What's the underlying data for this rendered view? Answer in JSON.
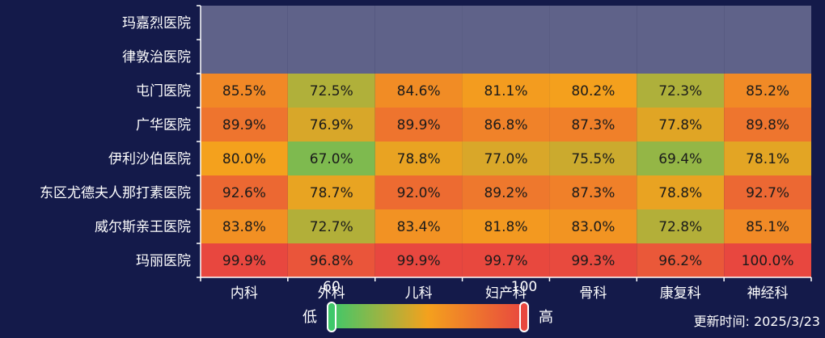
{
  "chart_data": {
    "type": "heatmap",
    "x_categories": [
      "内科",
      "外科",
      "儿科",
      "妇产科",
      "骨科",
      "康复科",
      "神经科"
    ],
    "y_categories": [
      "玛嘉烈医院",
      "律敦治医院",
      "屯门医院",
      "广华医院",
      "伊利沙伯医院",
      "东区尤德夫人那打素医院",
      "威尔斯亲王医院",
      "玛丽医院"
    ],
    "values": [
      [
        null,
        null,
        null,
        null,
        null,
        null,
        null
      ],
      [
        null,
        null,
        null,
        null,
        null,
        null,
        null
      ],
      [
        85.5,
        72.5,
        84.6,
        81.1,
        80.2,
        72.3,
        85.2
      ],
      [
        89.9,
        76.9,
        89.9,
        86.8,
        87.3,
        77.8,
        89.8
      ],
      [
        80.0,
        67.0,
        78.8,
        77.0,
        75.5,
        69.4,
        78.1
      ],
      [
        92.6,
        78.7,
        92.0,
        89.2,
        87.3,
        78.8,
        92.7
      ],
      [
        83.8,
        72.7,
        83.4,
        81.8,
        83.0,
        72.8,
        85.1
      ],
      [
        99.9,
        96.8,
        99.9,
        99.7,
        99.3,
        96.2,
        100.0
      ]
    ],
    "value_suffix": "%",
    "visual_map": {
      "min": 60,
      "max": 100,
      "min_label": "60",
      "max_label": "100",
      "low_text": "低",
      "high_text": "高",
      "colors": [
        "#3fc86a",
        "#f4a11d",
        "#e8473f"
      ]
    },
    "empty_cell_color": "#5f6289"
  },
  "footer": {
    "update_time": "更新时间: 2025/3/23"
  }
}
